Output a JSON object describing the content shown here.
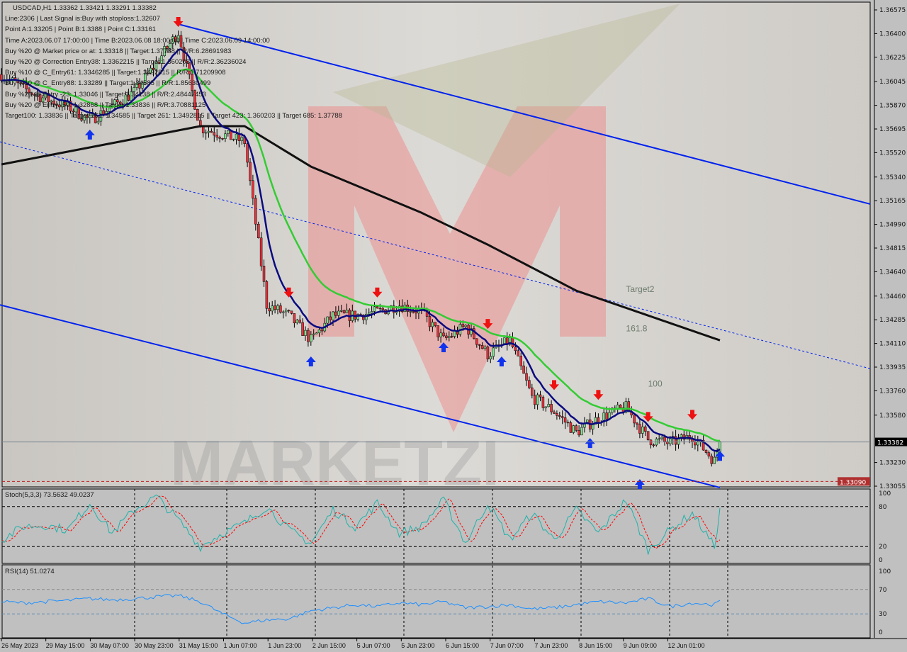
{
  "header": {
    "symbol_line": "USDCAD,H1  1.33362 1.33421 1.33291 1.33382",
    "info_lines": [
      "Line:2306 | Last Signal is:Buy with stoploss:1.32607",
      "Point A:1.33205 | Point B:1.3388 | Point C:1.33161",
      "Time A:2023.06.07 17:00:00 | Time B:2023.06.08 18:00:00 | Time C:2023.06.09 14:00:00",
      "Buy %20 @ Market price or at: 1.33318 || Target:1.37788 || R/R:6.28691983",
      "Buy %20 @ Correction Entry38: 1.3362215 || Target:1.360203 || R/R:2.36236024",
      "Buy %10 @ C_Entry61: 1.3346285 || Target:1.3492815 || R/R:1.71209908",
      "Buy %10 @ C_Entry88: 1.33289 || Target:1.34585 || R/R:1.85630499",
      "Buy %20 @ Entry -23: 1.33046 || Target:1.34138 || R/R:2.48447453",
      "Buy %20 @ Entry -50: 1.32868 || Target:1.33836 || R/R:3.70881125",
      "Target100: 1.33836 || Target 161: 1.34585 || Target 261: 1.3492815 || Target 423: 1.360203 || Target 685: 1.37788"
    ]
  },
  "colors": {
    "background": "#d4d0c8",
    "bull_candle": "#7fe08f",
    "bear_candle": "#e8323c",
    "ma_fast": "#0a0a80",
    "ma_mid": "#33cc33",
    "ma_slow": "#111111",
    "channel": "#0022ee",
    "stoch_main": "#20b2aa",
    "stoch_signal": "#ff0000",
    "rsi": "#1e90ff",
    "sell_arrow": "#ee1111",
    "buy_arrow": "#1133ee"
  },
  "chart_data": {
    "type": "candlestick",
    "symbol": "USDCAD",
    "timeframe": "H1",
    "ylim": [
      1.33055,
      1.36575
    ],
    "price_ticks": [
      "1.36575",
      "1.36400",
      "1.36225",
      "1.36045",
      "1.35870",
      "1.35695",
      "1.35520",
      "1.35340",
      "1.35165",
      "1.34990",
      "1.34815",
      "1.34640",
      "1.34460",
      "1.34285",
      "1.34110",
      "1.33935",
      "1.33760",
      "1.33580",
      "1.33230",
      "1.33055"
    ],
    "current_price": "1.33382",
    "stop_price": "1.33090",
    "time_ticks": [
      "26 May 2023",
      "29 May 15:00",
      "30 May 07:00",
      "30 May 23:00",
      "31 May 15:00",
      "1 Jun 07:00",
      "1 Jun 23:00",
      "2 Jun 15:00",
      "5 Jun 07:00",
      "5 Jun 23:00",
      "6 Jun 15:00",
      "7 Jun 07:00",
      "7 Jun 23:00",
      "8 Jun 15:00",
      "9 Jun 09:00",
      "12 Jun 01:00"
    ],
    "price_path": [
      [
        "2023-05-26 23:00",
        1.36098
      ],
      [
        "2023-05-29 07:00",
        1.35993
      ],
      [
        "2023-05-29 15:00",
        1.35915
      ],
      [
        "2023-05-29 23:00",
        1.35862
      ],
      [
        "2023-05-30 07:00",
        1.35758
      ],
      [
        "2023-05-30 15:00",
        1.35862
      ],
      [
        "2023-05-30 23:00",
        1.35967
      ],
      [
        "2023-05-31 07:00",
        1.36177
      ],
      [
        "2023-05-31 15:00",
        1.36413
      ],
      [
        "2023-05-31 23:00",
        1.35705
      ],
      [
        "2023-06-01 07:00",
        1.35653
      ],
      [
        "2023-06-01 15:00",
        1.356
      ],
      [
        "2023-06-01 23:00",
        1.34395
      ],
      [
        "2023-06-02 07:00",
        1.34316
      ],
      [
        "2023-06-02 15:00",
        1.34133
      ],
      [
        "2023-06-02 23:00",
        1.34316
      ],
      [
        "2023-06-05 07:00",
        1.34316
      ],
      [
        "2023-06-05 15:00",
        1.34343
      ],
      [
        "2023-06-05 23:00",
        1.34395
      ],
      [
        "2023-06-06 07:00",
        1.34343
      ],
      [
        "2023-06-06 15:00",
        1.34133
      ],
      [
        "2023-06-06 23:00",
        1.34238
      ],
      [
        "2023-06-07 07:00",
        1.34028
      ],
      [
        "2023-06-07 15:00",
        1.34133
      ],
      [
        "2023-06-07 23:00",
        1.33714
      ],
      [
        "2023-06-08 07:00",
        1.33609
      ],
      [
        "2023-06-08 15:00",
        1.33452
      ],
      [
        "2023-06-08 23:00",
        1.33557
      ],
      [
        "2023-06-09 09:00",
        1.33636
      ],
      [
        "2023-06-09 17:00",
        1.334
      ],
      [
        "2023-06-12 01:00",
        1.33374
      ],
      [
        "2023-06-12 09:00",
        1.33426
      ],
      [
        "2023-06-12 17:00",
        1.33242
      ],
      [
        "2023-06-12 19:00",
        1.33382
      ]
    ],
    "ma_slow": [
      [
        "2023-05-26 23:00",
        1.35433
      ],
      [
        "2023-05-31 23:00",
        1.35716
      ],
      [
        "2023-06-01 15:00",
        1.35716
      ],
      [
        "2023-06-02 15:00",
        1.35417
      ],
      [
        "2023-06-06 07:00",
        1.35076
      ],
      [
        "2023-06-07 07:00",
        1.3484
      ],
      [
        "2023-06-08 15:00",
        1.345
      ],
      [
        "2023-06-12 19:00",
        1.34133
      ]
    ],
    "channel": {
      "upper": [
        [
          "2023-05-31 15:00",
          1.3647
        ],
        [
          "right",
          1.3514
        ]
      ],
      "middle": [
        [
          "left",
          1.356
        ],
        [
          "right",
          1.33924
        ]
      ],
      "lower": [
        [
          "left",
          1.34395
        ],
        [
          "2023-06-12 19:00",
          1.33045
        ]
      ]
    },
    "level_labels": [
      {
        "text": "Target2",
        "time": "2023-06-09 09:00",
        "price": 1.3449
      },
      {
        "text": "161.8",
        "time": "2023-06-09 09:00",
        "price": 1.342
      },
      {
        "text": "100",
        "time": "2023-06-09 17:00",
        "price": 1.3379
      }
    ],
    "signals": [
      {
        "type": "sell",
        "time": "2023-05-31 15:00",
        "price": 1.3646
      },
      {
        "type": "sell",
        "time": "2023-06-02 07:00",
        "price": 1.3446
      },
      {
        "type": "sell",
        "time": "2023-06-05 15:00",
        "price": 1.3446
      },
      {
        "type": "sell",
        "time": "2023-06-07 07:00",
        "price": 1.34228
      },
      {
        "type": "sell",
        "time": "2023-06-08 07:00",
        "price": 1.33776
      },
      {
        "type": "sell",
        "time": "2023-06-08 23:00",
        "price": 1.33703
      },
      {
        "type": "sell",
        "time": "2023-06-09 17:00",
        "price": 1.3354
      },
      {
        "type": "sell",
        "time": "2023-06-12 09:00",
        "price": 1.33556
      },
      {
        "type": "buy",
        "time": "2023-05-30 07:00",
        "price": 1.3568
      },
      {
        "type": "buy",
        "time": "2023-06-02 15:00",
        "price": 1.34003
      },
      {
        "type": "buy",
        "time": "2023-06-06 15:00",
        "price": 1.34108
      },
      {
        "type": "buy",
        "time": "2023-06-07 12:00",
        "price": 1.34003
      },
      {
        "type": "buy",
        "time": "2023-06-08 20:00",
        "price": 1.334
      },
      {
        "type": "buy",
        "time": "2023-06-09 14:00",
        "price": 1.33096
      },
      {
        "type": "buy",
        "time": "2023-06-12 19:00",
        "price": 1.33305
      }
    ],
    "stochastic": {
      "label": "Stoch(5,3,3) 73.5632 49.0237",
      "levels": [
        "100",
        "80",
        "20",
        "0"
      ],
      "main": [
        30,
        50,
        52,
        45,
        85,
        40,
        75,
        95,
        60,
        20,
        40,
        55,
        80,
        45,
        25,
        75,
        50,
        85,
        40,
        50,
        90,
        25,
        85,
        30,
        70,
        30,
        75,
        40,
        90,
        15,
        45,
        70,
        20,
        73.56
      ]
    },
    "rsi": {
      "label": "RSI(14) 51.0274",
      "levels": [
        "100",
        "70",
        "30",
        "0"
      ],
      "values": [
        50,
        48,
        50,
        52,
        55,
        53,
        55,
        58,
        60,
        50,
        30,
        15,
        20,
        22,
        35,
        40,
        45,
        42,
        48,
        45,
        50,
        40,
        42,
        45,
        38,
        40,
        45,
        50,
        48,
        55,
        42,
        48,
        45,
        51.03
      ]
    },
    "watermark": "MARKETZI"
  }
}
